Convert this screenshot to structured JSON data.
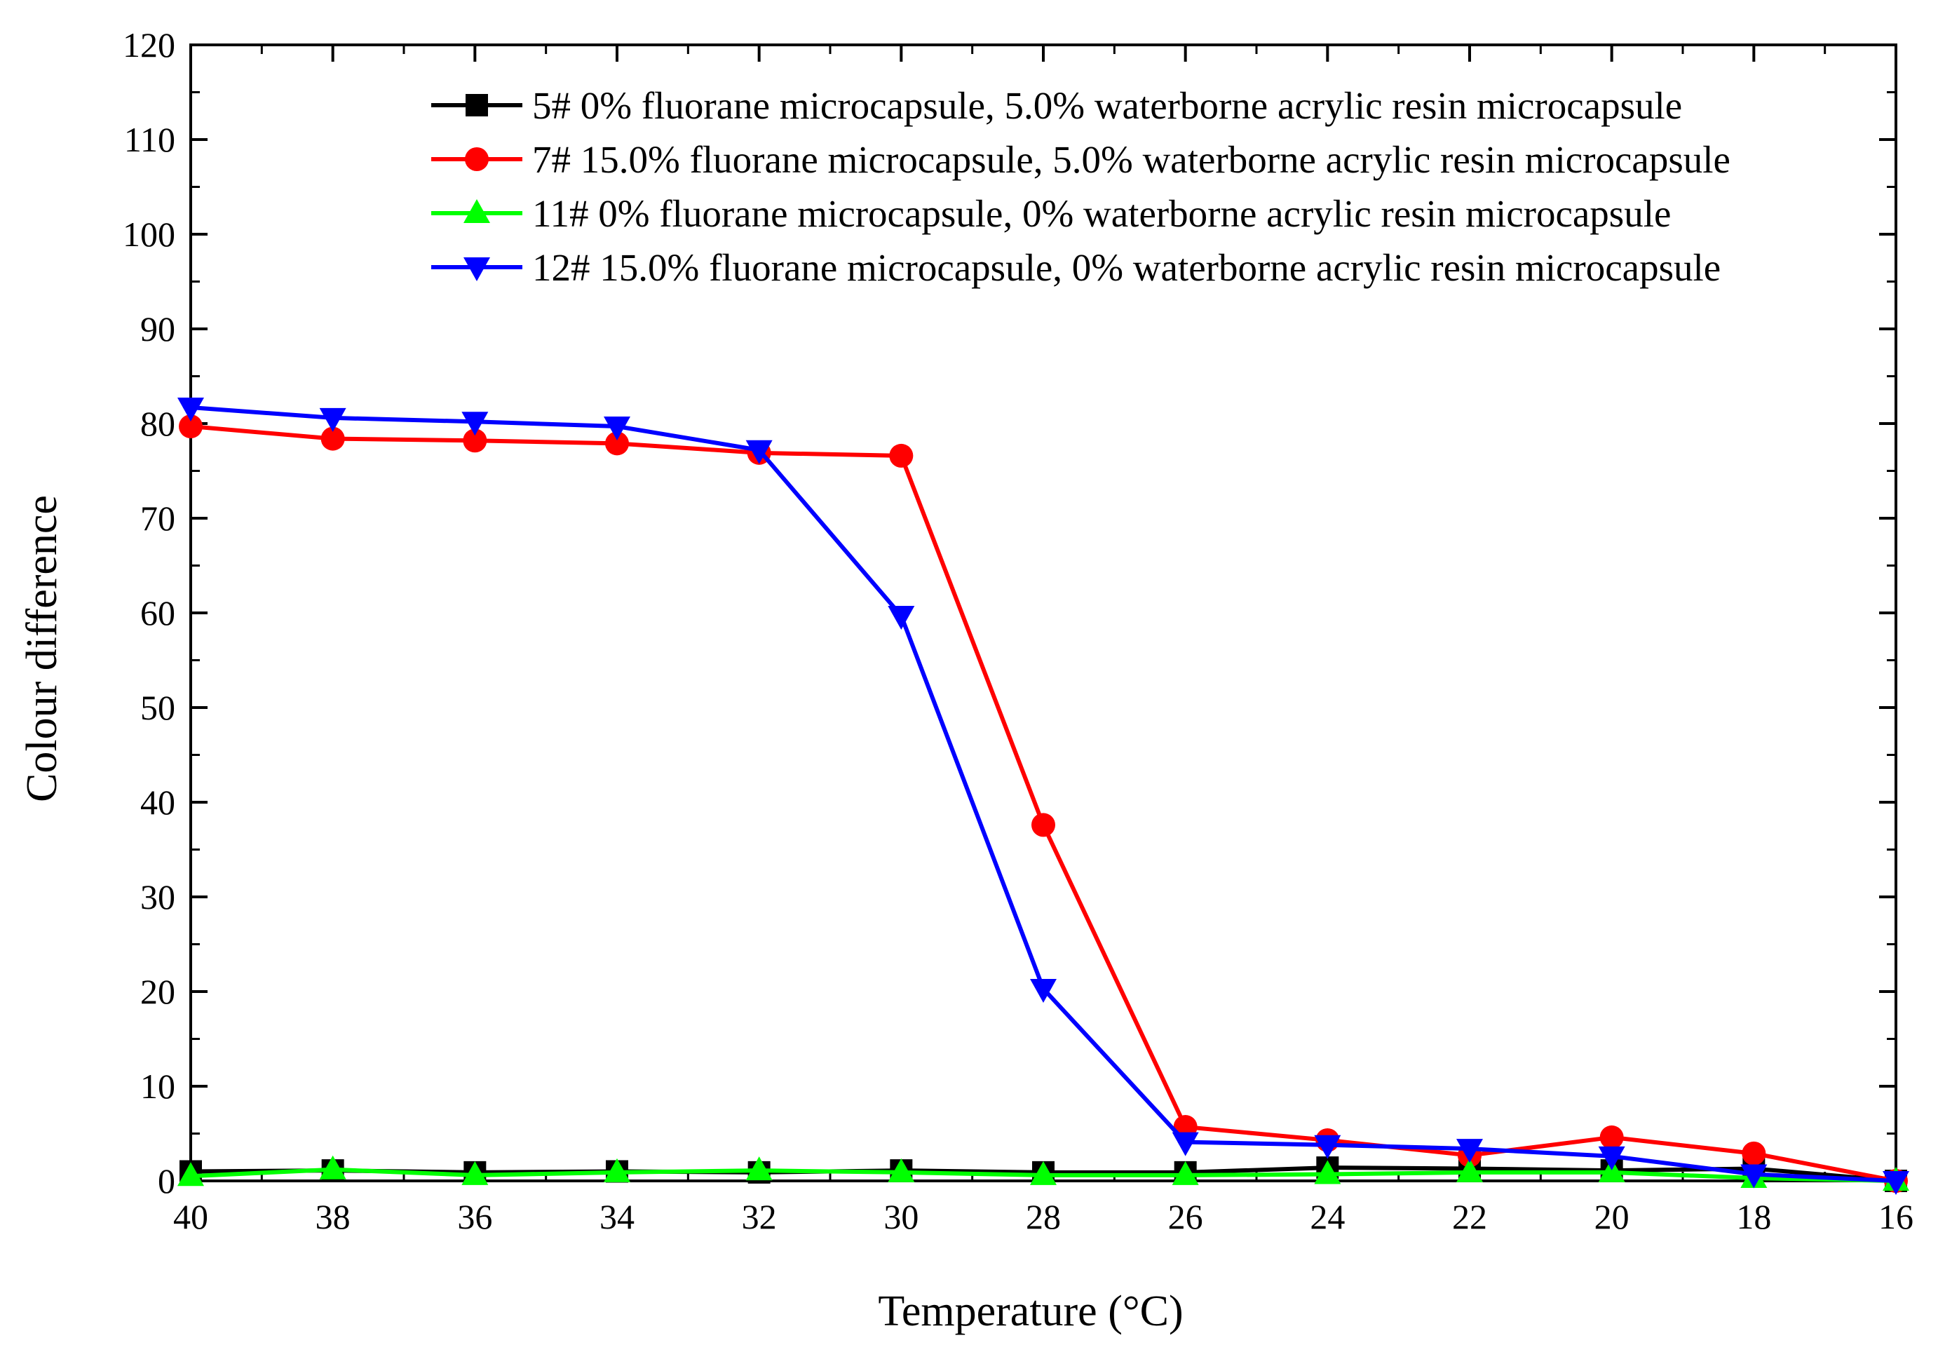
{
  "chart_data": {
    "type": "line",
    "title": "",
    "xlabel": "Temperature (°C)",
    "ylabel": "Colour difference",
    "xlim": [
      40,
      16
    ],
    "ylim": [
      0,
      120
    ],
    "x_ticks": [
      "40",
      "38",
      "36",
      "34",
      "32",
      "30",
      "28",
      "26",
      "24",
      "22",
      "20",
      "18",
      "16"
    ],
    "y_ticks": [
      "0",
      "10",
      "20",
      "30",
      "40",
      "50",
      "60",
      "70",
      "80",
      "90",
      "100",
      "110",
      "120"
    ],
    "legend_position": "top-right",
    "x": [
      40,
      38,
      36,
      34,
      32,
      30,
      28,
      26,
      24,
      22,
      20,
      18,
      16
    ],
    "series": [
      {
        "name": "5# 0% fluorane microcapsule, 5.0% waterborne acrylic resin microcapsule",
        "color": "#000000",
        "marker": "square",
        "values": [
          1.0,
          1.1,
          0.9,
          1.0,
          0.9,
          1.1,
          0.9,
          0.9,
          1.4,
          1.3,
          1.1,
          1.3,
          0.0
        ]
      },
      {
        "name": "7# 15.0% fluorane microcapsule, 5.0% waterborne acrylic resin microcapsule",
        "color": "#ff0000",
        "marker": "circle",
        "values": [
          79.7,
          78.4,
          78.2,
          77.9,
          76.9,
          76.6,
          37.6,
          5.7,
          4.3,
          2.7,
          4.6,
          2.9,
          0.0
        ]
      },
      {
        "name": "11# 0% fluorane microcapsule, 0% waterborne acrylic resin microcapsule",
        "color": "#00ff00",
        "marker": "triangle-up",
        "values": [
          0.5,
          1.2,
          0.6,
          0.9,
          1.1,
          0.9,
          0.6,
          0.6,
          0.7,
          0.9,
          0.9,
          0.3,
          0.0
        ]
      },
      {
        "name": "12# 15.0% fluorane microcapsule, 0% waterborne acrylic resin microcapsule",
        "color": "#0000ff",
        "marker": "triangle-down",
        "values": [
          81.7,
          80.6,
          80.2,
          79.7,
          77.2,
          59.7,
          20.3,
          4.1,
          3.8,
          3.4,
          2.6,
          0.7,
          0.0
        ]
      }
    ]
  }
}
